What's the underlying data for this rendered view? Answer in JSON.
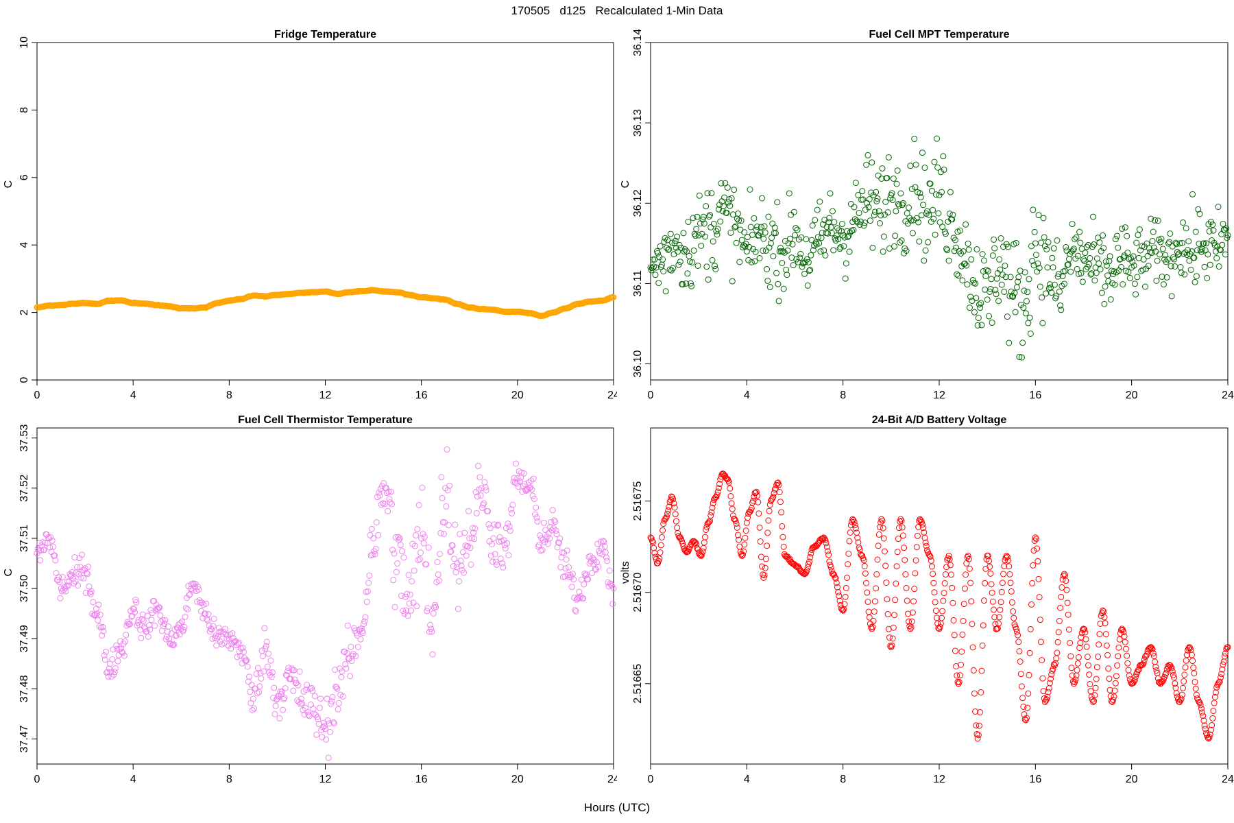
{
  "figure": {
    "suptitle": "170505   d125   Recalculated 1-Min Data",
    "xlabel": "Hours (UTC)"
  },
  "chart_data": [
    {
      "type": "scatter",
      "title": "Fridge Temperature",
      "ylabel": "C",
      "xlim": [
        0,
        24
      ],
      "ylim": [
        0,
        10
      ],
      "xticks": [
        0,
        4,
        8,
        12,
        16,
        20,
        24
      ],
      "yticks": [
        0,
        2,
        4,
        6,
        8,
        10
      ],
      "color": "#FFA500",
      "series": [
        {
          "x": [
            0,
            0.5,
            1,
            1.5,
            2,
            2.5,
            3,
            3.5,
            4,
            4.5,
            5,
            5.5,
            6,
            6.5,
            7,
            7.5,
            8,
            8.5,
            9,
            9.5,
            10,
            10.5,
            11,
            11.5,
            12,
            12.5,
            13,
            13.5,
            14,
            14.5,
            15,
            15.5,
            16,
            16.5,
            17,
            17.5,
            18,
            18.5,
            19,
            19.5,
            20,
            20.5,
            21,
            21.5,
            22,
            22.5,
            23,
            23.5,
            24
          ],
          "y": [
            2.15,
            2.2,
            2.22,
            2.26,
            2.28,
            2.25,
            2.35,
            2.36,
            2.28,
            2.26,
            2.22,
            2.18,
            2.12,
            2.12,
            2.15,
            2.28,
            2.35,
            2.4,
            2.5,
            2.48,
            2.52,
            2.55,
            2.58,
            2.6,
            2.62,
            2.55,
            2.6,
            2.63,
            2.66,
            2.62,
            2.6,
            2.52,
            2.45,
            2.42,
            2.38,
            2.25,
            2.15,
            2.1,
            2.08,
            2.02,
            2.02,
            1.98,
            1.9,
            2.0,
            2.12,
            2.25,
            2.32,
            2.35,
            2.45
          ]
        }
      ]
    },
    {
      "type": "scatter",
      "title": "Fuel Cell MPT Temperature",
      "ylabel": "C",
      "xlim": [
        0,
        24
      ],
      "ylim": [
        36.098,
        36.14
      ],
      "xticks": [
        0,
        4,
        8,
        12,
        16,
        20,
        24
      ],
      "yticks": [
        36.1,
        36.11,
        36.12,
        36.13,
        36.14
      ],
      "ytick_labels": [
        "36.10",
        "36.11",
        "36.12",
        "36.13",
        "36.14"
      ],
      "color": "#006400",
      "series": [
        {
          "x": [
            0,
            0.5,
            1,
            1.5,
            2,
            2.5,
            3,
            3.5,
            4,
            4.5,
            5,
            5.5,
            6,
            6.5,
            7,
            7.5,
            8,
            8.5,
            9,
            9.5,
            10,
            10.5,
            11,
            11.5,
            12,
            12.5,
            13,
            13.5,
            14,
            14.5,
            15,
            15.5,
            16,
            16.5,
            17,
            17.5,
            18,
            18.5,
            19,
            19.5,
            20,
            20.5,
            21,
            21.5,
            22,
            22.5,
            23,
            23.5,
            24
          ],
          "y": [
            36.112,
            36.113,
            36.115,
            36.114,
            36.116,
            36.117,
            36.119,
            36.117,
            36.114,
            36.116,
            36.115,
            36.114,
            36.116,
            36.113,
            36.115,
            36.117,
            36.116,
            36.118,
            36.12,
            36.119,
            36.121,
            36.12,
            36.122,
            36.119,
            36.121,
            36.118,
            36.114,
            36.11,
            36.108,
            36.113,
            36.109,
            36.107,
            36.115,
            36.112,
            36.109,
            36.114,
            36.113,
            36.112,
            36.111,
            36.113,
            36.112,
            36.113,
            36.114,
            36.113,
            36.115,
            36.114,
            36.115,
            36.114,
            36.116
          ],
          "spread": [
            0.004,
            0.005,
            0.005,
            0.005,
            0.005,
            0.006,
            0.006,
            0.005,
            0.005,
            0.005,
            0.005,
            0.005,
            0.005,
            0.005,
            0.005,
            0.005,
            0.005,
            0.005,
            0.006,
            0.006,
            0.006,
            0.006,
            0.006,
            0.006,
            0.007,
            0.006,
            0.005,
            0.006,
            0.007,
            0.006,
            0.007,
            0.007,
            0.007,
            0.006,
            0.006,
            0.005,
            0.005,
            0.005,
            0.005,
            0.005,
            0.004,
            0.004,
            0.004,
            0.004,
            0.004,
            0.005,
            0.005,
            0.005,
            0.004
          ]
        }
      ]
    },
    {
      "type": "scatter",
      "title": "Fuel Cell Thermistor Temperature",
      "ylabel": "C",
      "xlim": [
        0,
        24
      ],
      "ylim": [
        37.465,
        37.532
      ],
      "xticks": [
        0,
        4,
        8,
        12,
        16,
        20,
        24
      ],
      "yticks": [
        37.47,
        37.48,
        37.49,
        37.5,
        37.51,
        37.52,
        37.53
      ],
      "ytick_labels": [
        "37.47",
        "37.48",
        "37.49",
        "37.50",
        "37.51",
        "37.52",
        "37.53"
      ],
      "color": "#EE82EE",
      "series": [
        {
          "x": [
            0,
            0.5,
            1,
            1.5,
            2,
            2.5,
            3,
            3.5,
            4,
            4.5,
            5,
            5.5,
            6,
            6.5,
            7,
            7.5,
            8,
            8.5,
            9,
            9.5,
            10,
            10.5,
            11,
            11.5,
            12,
            12.5,
            13,
            13.5,
            14,
            14.5,
            15,
            15.5,
            16,
            16.5,
            17,
            17.5,
            18,
            18.5,
            19,
            19.5,
            20,
            20.5,
            21,
            21.5,
            22,
            22.5,
            23,
            23.5,
            24
          ],
          "y": [
            37.507,
            37.51,
            37.5,
            37.502,
            37.504,
            37.495,
            37.484,
            37.488,
            37.496,
            37.492,
            37.496,
            37.49,
            37.492,
            37.501,
            37.495,
            37.49,
            37.49,
            37.488,
            37.478,
            37.488,
            37.478,
            37.482,
            37.478,
            37.476,
            37.472,
            37.48,
            37.486,
            37.492,
            37.51,
            37.52,
            37.505,
            37.497,
            37.51,
            37.495,
            37.52,
            37.505,
            37.51,
            37.52,
            37.51,
            37.508,
            37.522,
            37.52,
            37.51,
            37.512,
            37.504,
            37.498,
            37.505,
            37.508,
            37.5
          ],
          "spread": [
            0.004,
            0.004,
            0.004,
            0.004,
            0.005,
            0.005,
            0.004,
            0.004,
            0.004,
            0.004,
            0.004,
            0.004,
            0.004,
            0.004,
            0.004,
            0.004,
            0.004,
            0.005,
            0.006,
            0.006,
            0.006,
            0.007,
            0.008,
            0.008,
            0.008,
            0.008,
            0.007,
            0.008,
            0.01,
            0.012,
            0.014,
            0.016,
            0.018,
            0.016,
            0.014,
            0.012,
            0.01,
            0.008,
            0.008,
            0.006,
            0.006,
            0.006,
            0.005,
            0.005,
            0.005,
            0.005,
            0.005,
            0.005,
            0.005
          ]
        }
      ]
    },
    {
      "type": "scatter",
      "title": "24-Bit A/D Battery Voltage",
      "ylabel": "volts",
      "xlim": [
        0,
        24
      ],
      "ylim": [
        2.516606,
        2.51679
      ],
      "xticks": [
        0,
        4,
        8,
        12,
        16,
        20,
        24
      ],
      "yticks": [
        2.51665,
        2.5167,
        2.51675
      ],
      "ytick_labels": [
        "2.51665",
        "2.51670",
        "2.51675"
      ],
      "color": "#FF0000",
      "series": [
        {
          "x": [
            0,
            0.3,
            0.6,
            0.9,
            1.2,
            1.5,
            1.8,
            2.1,
            2.4,
            2.7,
            3.0,
            3.2,
            3.5,
            3.8,
            4.1,
            4.4,
            4.7,
            5.0,
            5.3,
            5.6,
            6.0,
            6.4,
            6.8,
            7.2,
            7.6,
            8.0,
            8.4,
            8.8,
            9.2,
            9.6,
            10.0,
            10.4,
            10.8,
            11.2,
            11.6,
            12.0,
            12.4,
            12.8,
            13.2,
            13.6,
            14.0,
            14.4,
            14.8,
            15.2,
            15.6,
            16.0,
            16.4,
            16.8,
            17.2,
            17.6,
            18.0,
            18.4,
            18.8,
            19.2,
            19.6,
            20.0,
            20.4,
            20.8,
            21.2,
            21.6,
            22.0,
            22.4,
            22.8,
            23.2,
            23.6,
            24.0
          ],
          "y": [
            2.51673,
            2.516716,
            2.51674,
            2.516752,
            2.51673,
            2.516722,
            2.516728,
            2.51672,
            2.516738,
            2.516752,
            2.516765,
            2.516762,
            2.51674,
            2.51672,
            2.516744,
            2.516755,
            2.516708,
            2.51675,
            2.51676,
            2.51672,
            2.516715,
            2.51671,
            2.516725,
            2.51673,
            2.51671,
            2.51669,
            2.51674,
            2.51672,
            2.51668,
            2.51674,
            2.51667,
            2.51674,
            2.51668,
            2.51674,
            2.51672,
            2.51668,
            2.51672,
            2.51665,
            2.51672,
            2.51662,
            2.51672,
            2.51668,
            2.51672,
            2.51668,
            2.51663,
            2.51673,
            2.51664,
            2.51666,
            2.51671,
            2.51665,
            2.51668,
            2.51664,
            2.51669,
            2.51664,
            2.51668,
            2.51665,
            2.51666,
            2.51667,
            2.51665,
            2.51666,
            2.51664,
            2.51667,
            2.51664,
            2.51662,
            2.51665,
            2.51667
          ],
          "spread": [
            1e-06,
            1e-06,
            1e-06,
            1e-06,
            1e-06,
            1e-06,
            1e-06,
            1e-06,
            1e-06,
            1e-06,
            1e-06,
            1e-06,
            1e-06,
            1e-06,
            1e-06,
            1e-06,
            1e-06,
            1e-06,
            1e-06,
            1e-06,
            1e-06,
            1e-06,
            1e-06,
            1e-06,
            1e-06,
            1e-06,
            1e-06,
            1e-06,
            1e-06,
            1e-06,
            1e-06,
            1e-06,
            1e-06,
            1e-06,
            1e-06,
            1e-06,
            1e-06,
            1e-06,
            1e-06,
            1e-06,
            1e-06,
            1e-06,
            1e-06,
            1e-06,
            1e-06,
            1e-06,
            1e-06,
            1e-06,
            1e-06,
            1e-06,
            1e-06,
            1e-06,
            1e-06,
            1e-06,
            1e-06,
            1e-06,
            1e-06,
            1e-06,
            1e-06,
            1e-06,
            1e-06,
            1e-06,
            1e-06,
            1e-06,
            1e-06,
            1e-06
          ]
        }
      ]
    }
  ]
}
